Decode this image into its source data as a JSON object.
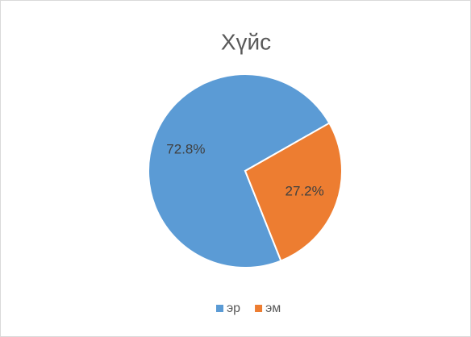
{
  "chart_data": {
    "type": "pie",
    "title": "Хүйс",
    "categories": [
      "эр",
      "эм"
    ],
    "values": [
      72.8,
      27.2
    ],
    "value_labels": [
      "72.8%",
      "27.2%"
    ],
    "colors": [
      "#5b9bd5",
      "#ed7d31"
    ],
    "legend": "bottom"
  }
}
